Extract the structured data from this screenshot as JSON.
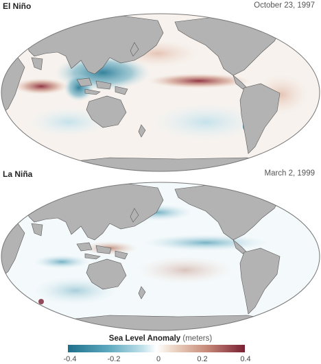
{
  "panels": [
    {
      "title": "El Niño",
      "date": "October 23, 1997"
    },
    {
      "title": "La Niña",
      "date": "March 2, 1999"
    }
  ],
  "legend": {
    "title": "Sea Level Anomaly",
    "units": "(meters)",
    "ticks": [
      "-0.4",
      "-0.2",
      "0",
      "0.2",
      "0.4"
    ]
  },
  "colors": {
    "land": "#b3b3b3",
    "coastline": "#555555",
    "negative": "#1f6f8b",
    "positive": "#7a1f33",
    "neutral": "#ffffff"
  }
}
